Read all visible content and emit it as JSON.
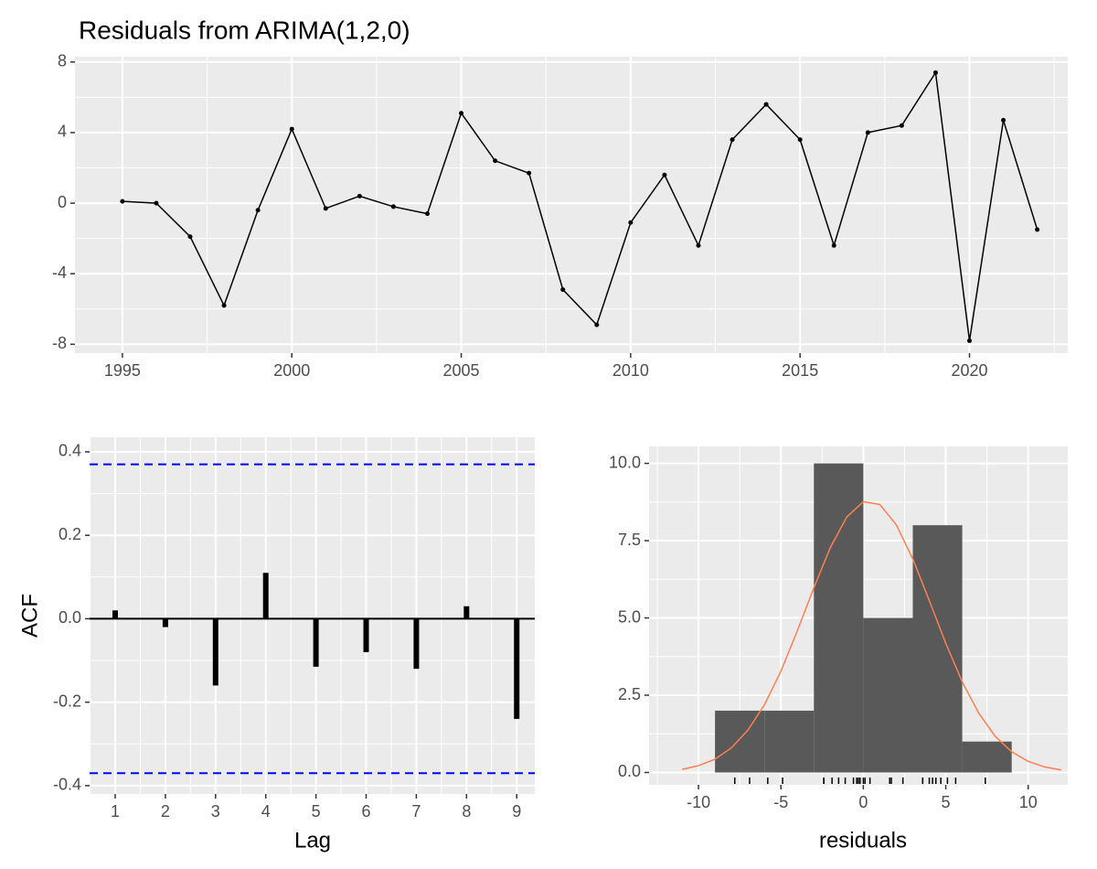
{
  "chart_data": [
    {
      "type": "line",
      "title": "Residuals from ARIMA(1,2,0)",
      "x": [
        1995,
        1996,
        1997,
        1998,
        1999,
        2000,
        2001,
        2002,
        2003,
        2004,
        2005,
        2006,
        2007,
        2008,
        2009,
        2010,
        2011,
        2012,
        2013,
        2014,
        2015,
        2016,
        2017,
        2018,
        2019,
        2020,
        2021,
        2022
      ],
      "values": [
        0.1,
        0.0,
        -1.9,
        -5.8,
        -0.4,
        4.2,
        -0.3,
        0.4,
        -0.2,
        -0.6,
        5.1,
        2.4,
        1.7,
        -4.9,
        -6.9,
        -1.1,
        1.6,
        -2.4,
        3.6,
        5.6,
        3.6,
        -2.4,
        4.0,
        4.4,
        7.4,
        -7.8,
        4.7,
        -1.5
      ],
      "color": "#000000",
      "xlim": [
        1993.6,
        2022.9
      ],
      "xticks": [
        1995,
        2000,
        2005,
        2010,
        2015,
        2020
      ],
      "ylim": [
        -8.5,
        8.3
      ],
      "yticks": [
        -8,
        -4,
        0,
        4,
        8
      ],
      "grid": true
    },
    {
      "type": "stem",
      "xlabel": "Lag",
      "ylabel": "ACF",
      "x": [
        1,
        2,
        3,
        4,
        5,
        6,
        7,
        8,
        9
      ],
      "values": [
        0.02,
        -0.02,
        -0.16,
        0.11,
        -0.115,
        -0.08,
        -0.12,
        0.03,
        -0.24
      ],
      "color": "#000000",
      "ci_bounds": [
        -0.37,
        0.37
      ],
      "ci_color": "#0000FF",
      "xlim": [
        0.49,
        9.36
      ],
      "xticks": [
        1,
        2,
        3,
        4,
        5,
        6,
        7,
        8,
        9
      ],
      "ylim": [
        -0.42,
        0.435
      ],
      "yticks": [
        -0.4,
        -0.2,
        {
          "value": 0,
          "label": "0.0"
        },
        0.2,
        0.4
      ],
      "grid": true
    },
    {
      "type": "histogram",
      "xlabel": "residuals",
      "bins": [
        -9,
        -6,
        -3,
        0,
        3,
        6,
        9
      ],
      "counts": [
        2,
        2,
        10,
        5,
        8,
        1
      ],
      "color": "#595959",
      "curve_x": [
        -11,
        -10,
        -9,
        -8,
        -7,
        -6,
        -5,
        -4,
        -3,
        -2,
        -1,
        0,
        1,
        2,
        3,
        4,
        5,
        6,
        7,
        8,
        9,
        10,
        11,
        12
      ],
      "curve_y": [
        0.1,
        0.22,
        0.43,
        0.8,
        1.37,
        2.19,
        3.28,
        4.59,
        5.98,
        7.28,
        8.27,
        8.76,
        8.67,
        8.01,
        6.91,
        5.56,
        4.18,
        2.93,
        1.92,
        1.17,
        0.67,
        0.36,
        0.18,
        0.08
      ],
      "curve_color": "#FF7F50",
      "xlim": [
        -13,
        12.4
      ],
      "xticks": [
        -10,
        -5,
        0,
        5,
        10
      ],
      "ylim": [
        -0.4,
        10.55
      ],
      "yticks": [
        {
          "value": 0,
          "label": "0.0"
        },
        2.5,
        {
          "value": 5,
          "label": "5.0"
        },
        7.5,
        {
          "value": 10,
          "label": "10.0"
        }
      ],
      "grid": true
    }
  ]
}
